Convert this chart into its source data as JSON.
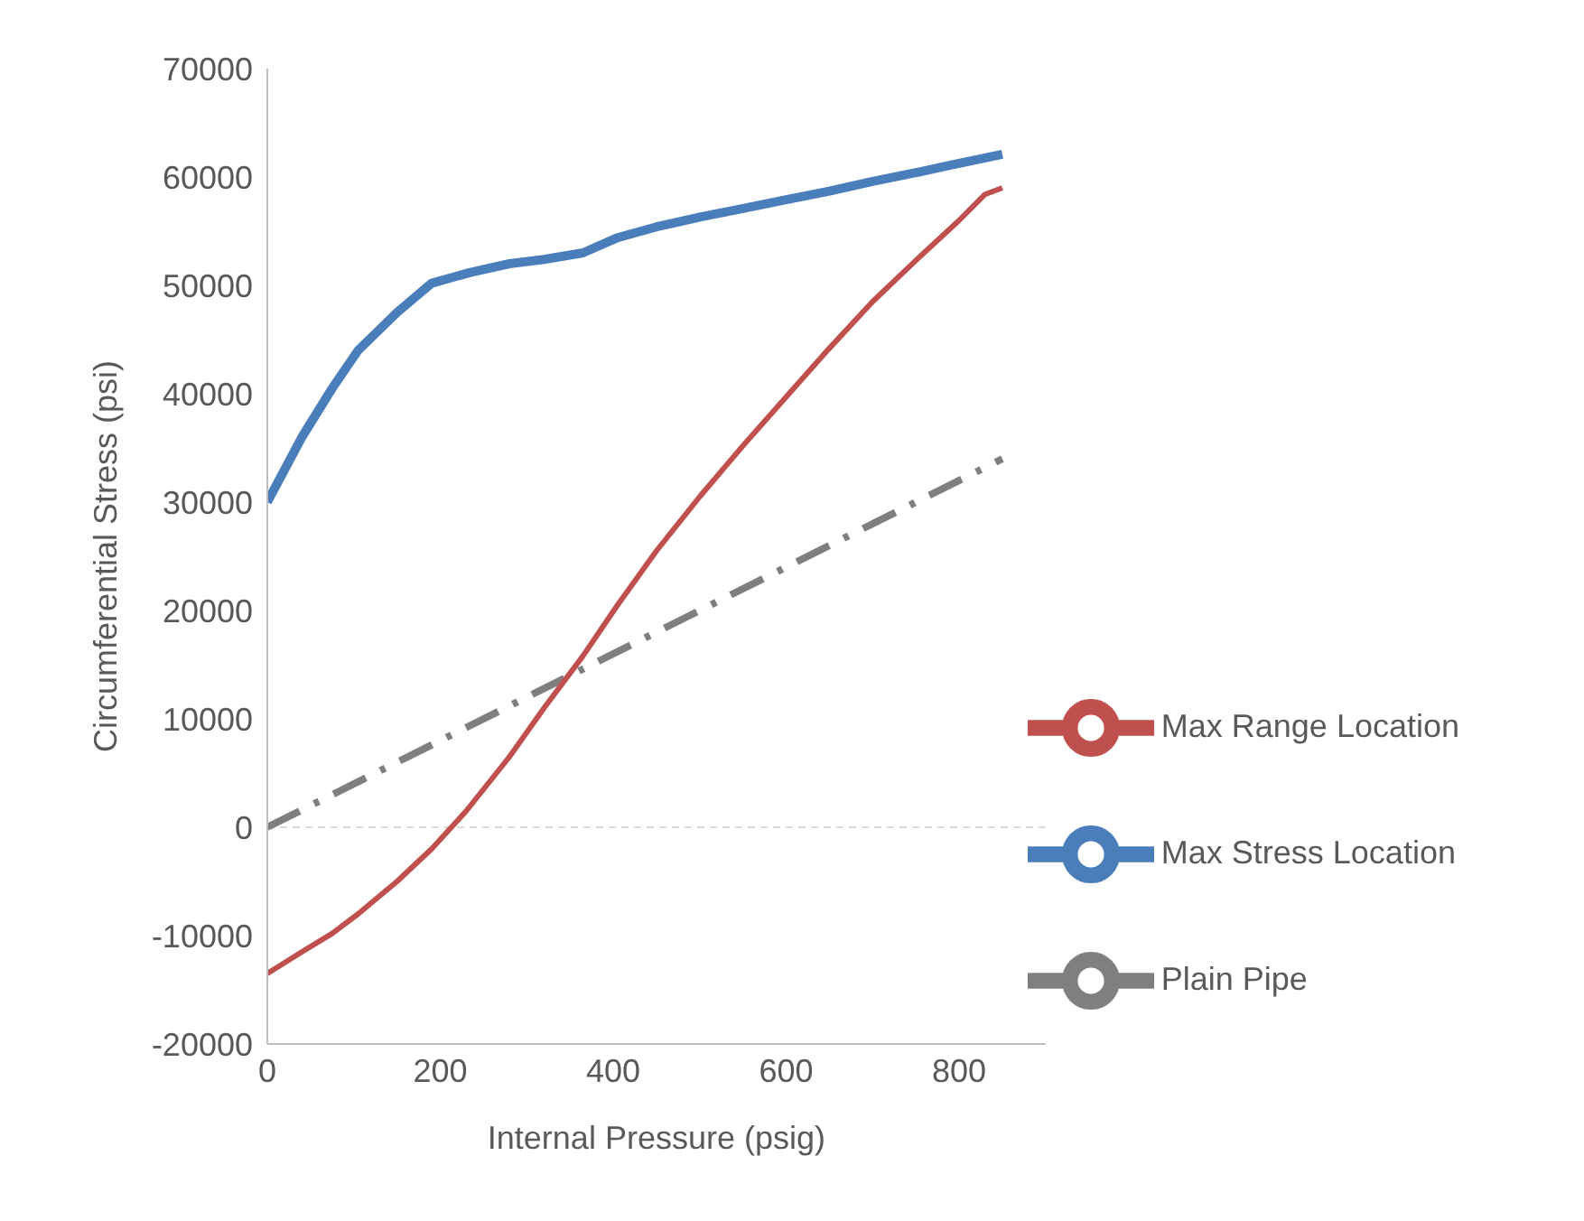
{
  "chart_data": {
    "type": "line",
    "xlabel": "Internal Pressure (psig)",
    "ylabel": "Circumferential Stress (psi)",
    "xlim": [
      0,
      900
    ],
    "xticks": [
      0,
      200,
      400,
      600,
      800
    ],
    "ylim": [
      -20000,
      70000
    ],
    "yticks": [
      -20000,
      -10000,
      0,
      10000,
      20000,
      30000,
      40000,
      50000,
      60000,
      70000
    ],
    "grid": false,
    "legend": "bottom right",
    "marker": "none",
    "ref_lines": [
      {
        "axis": "y",
        "value": 0,
        "color": "#d9d9d9",
        "line_style": "dashed"
      }
    ],
    "series": [
      {
        "name": "Plain Pipe",
        "color": "#7f7f7f",
        "line_style": "dashed",
        "x": [
          0,
          850
        ],
        "values": [
          0,
          34000
        ]
      },
      {
        "name": "Max Stress Location",
        "color": "#4a7ebb",
        "line_style": "solid",
        "x": [
          0,
          40,
          75,
          105,
          150,
          190,
          235,
          280,
          320,
          365,
          405,
          450,
          500,
          550,
          600,
          650,
          700,
          750,
          790,
          850
        ],
        "values": [
          30000,
          36000,
          40500,
          44000,
          47500,
          50200,
          51200,
          52000,
          52400,
          53000,
          54400,
          55400,
          56300,
          57100,
          57900,
          58700,
          59600,
          60400,
          61100,
          62100
        ]
      },
      {
        "name": "Max Range Location",
        "color": "#c0504d",
        "line_style": "solid",
        "x": [
          0,
          40,
          75,
          105,
          150,
          190,
          230,
          280,
          320,
          365,
          405,
          450,
          500,
          550,
          600,
          650,
          700,
          750,
          800,
          830,
          850
        ],
        "values": [
          -13500,
          -11500,
          -9800,
          -8000,
          -5000,
          -2000,
          1500,
          6500,
          11000,
          15800,
          20500,
          25500,
          30500,
          35200,
          39700,
          44200,
          48500,
          52300,
          56000,
          58400,
          59000
        ]
      }
    ]
  }
}
